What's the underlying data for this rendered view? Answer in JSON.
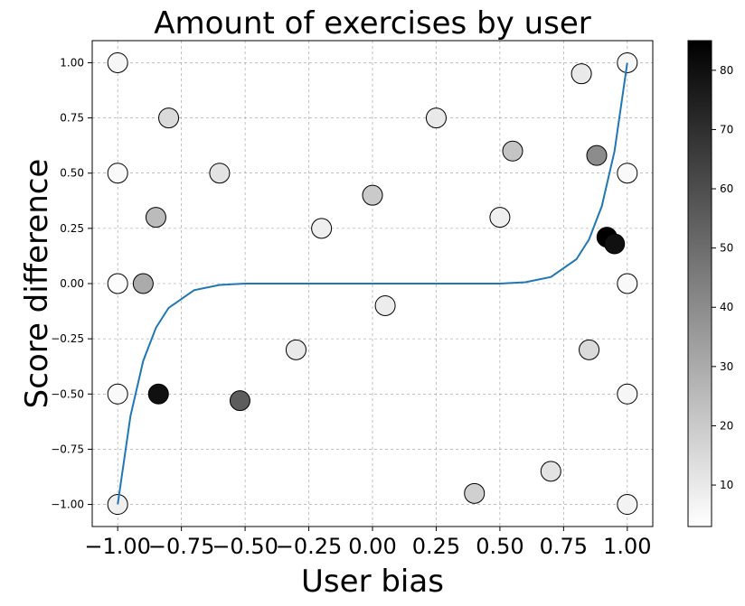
{
  "chart_data": {
    "type": "scatter",
    "title": "Amount of exercises by user",
    "xlabel": "User bias",
    "ylabel": "Score difference",
    "xlim": [
      -1.1,
      1.1
    ],
    "ylim": [
      -1.1,
      1.1
    ],
    "x_ticks": [
      -1.0,
      -0.75,
      -0.5,
      -0.25,
      0.0,
      0.25,
      0.5,
      0.75,
      1.0
    ],
    "x_tick_labels": [
      "−1.00",
      "−0.75",
      "−0.50",
      "−0.25",
      "0.00",
      "0.25",
      "0.50",
      "0.75",
      "1.00"
    ],
    "y_ticks": [
      -1.0,
      -0.75,
      -0.5,
      -0.25,
      0.0,
      0.25,
      0.5,
      0.75,
      1.0
    ],
    "y_tick_labels": [
      "−1.00",
      "−0.75",
      "−0.50",
      "−0.25",
      "0.00",
      "0.25",
      "0.50",
      "0.75",
      "1.00"
    ],
    "grid": true,
    "colorbar": {
      "range": [
        3,
        85
      ],
      "ticks": [
        10,
        20,
        30,
        40,
        50,
        60,
        70,
        80
      ],
      "tick_labels": [
        "10",
        "20",
        "30",
        "40",
        "50",
        "60",
        "70",
        "80"
      ],
      "colormap": "greys"
    },
    "series": [
      {
        "color_by": "amount of exercises",
        "edge_color": "#000000",
        "points": [
          {
            "x": -1.0,
            "y": 0.0,
            "c": 4
          },
          {
            "x": -1.0,
            "y": -0.5,
            "c": 5
          },
          {
            "x": -1.0,
            "y": 0.5,
            "c": 5
          },
          {
            "x": -1.0,
            "y": 1.0,
            "c": 6
          },
          {
            "x": -1.0,
            "y": -1.0,
            "c": 8
          },
          {
            "x": -0.9,
            "y": 0.0,
            "c": 30
          },
          {
            "x": -0.85,
            "y": 0.3,
            "c": 25
          },
          {
            "x": -0.84,
            "y": -0.5,
            "c": 80
          },
          {
            "x": -0.8,
            "y": 0.75,
            "c": 15
          },
          {
            "x": -0.52,
            "y": -0.53,
            "c": 55
          },
          {
            "x": -0.6,
            "y": 0.5,
            "c": 12
          },
          {
            "x": -0.3,
            "y": -0.3,
            "c": 10
          },
          {
            "x": -0.2,
            "y": 0.25,
            "c": 8
          },
          {
            "x": 0.0,
            "y": 0.4,
            "c": 20
          },
          {
            "x": 0.05,
            "y": -0.1,
            "c": 9
          },
          {
            "x": 0.25,
            "y": 0.75,
            "c": 10
          },
          {
            "x": 0.4,
            "y": -0.95,
            "c": 18
          },
          {
            "x": 0.5,
            "y": 0.3,
            "c": 8
          },
          {
            "x": 0.55,
            "y": 0.6,
            "c": 22
          },
          {
            "x": 0.7,
            "y": -0.85,
            "c": 12
          },
          {
            "x": 0.82,
            "y": 0.95,
            "c": 10
          },
          {
            "x": 0.85,
            "y": -0.3,
            "c": 15
          },
          {
            "x": 0.88,
            "y": 0.58,
            "c": 40
          },
          {
            "x": 0.92,
            "y": 0.21,
            "c": 85
          },
          {
            "x": 0.95,
            "y": 0.18,
            "c": 80
          },
          {
            "x": 1.0,
            "y": 0.0,
            "c": 5
          },
          {
            "x": 1.0,
            "y": 0.5,
            "c": 5
          },
          {
            "x": 1.0,
            "y": -0.5,
            "c": 6
          },
          {
            "x": 1.0,
            "y": 1.0,
            "c": 6
          },
          {
            "x": 1.0,
            "y": -1.0,
            "c": 7
          }
        ]
      },
      {
        "kind": "fit-line",
        "color": "#1f77b4",
        "points": [
          {
            "x": -1.0,
            "y": -1.0
          },
          {
            "x": -0.95,
            "y": -0.6
          },
          {
            "x": -0.9,
            "y": -0.35
          },
          {
            "x": -0.85,
            "y": -0.2
          },
          {
            "x": -0.8,
            "y": -0.11
          },
          {
            "x": -0.7,
            "y": -0.03
          },
          {
            "x": -0.6,
            "y": -0.006
          },
          {
            "x": -0.5,
            "y": 0.0
          },
          {
            "x": 0.0,
            "y": 0.0
          },
          {
            "x": 0.5,
            "y": 0.0
          },
          {
            "x": 0.6,
            "y": 0.006
          },
          {
            "x": 0.7,
            "y": 0.03
          },
          {
            "x": 0.8,
            "y": 0.11
          },
          {
            "x": 0.85,
            "y": 0.2
          },
          {
            "x": 0.9,
            "y": 0.35
          },
          {
            "x": 0.95,
            "y": 0.6
          },
          {
            "x": 1.0,
            "y": 1.0
          }
        ]
      }
    ]
  }
}
